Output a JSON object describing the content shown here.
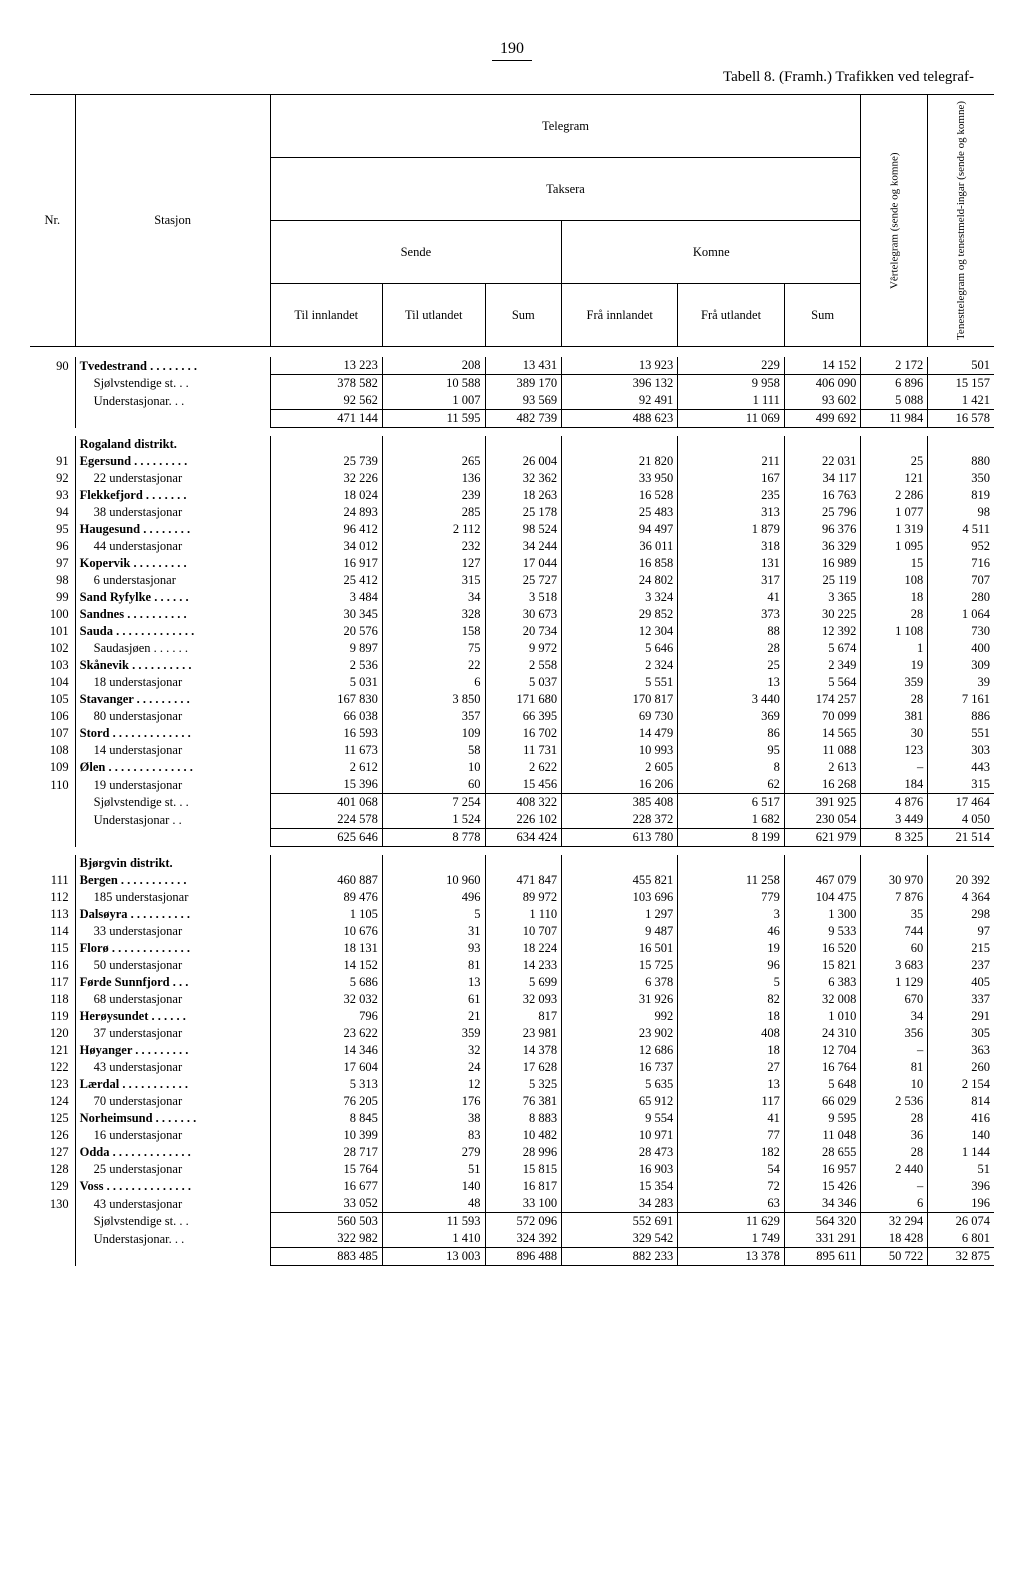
{
  "page_number": "190",
  "title": "Tabell 8. (Framh.) Trafikken ved telegraf-",
  "headers": {
    "telegram": "Telegram",
    "taksera": "Taksera",
    "sende": "Sende",
    "komne": "Komne",
    "nr": "Nr.",
    "stasjon": "Stasjon",
    "til_innlandet": "Til innlandet",
    "til_utlandet": "Til utlandet",
    "sum": "Sum",
    "fra_innlandet": "Frå innlandet",
    "fra_utlandet": "Frå utlandet",
    "vertelegram": "Vêrtelegram (sende og komne)",
    "tenesttelegram": "Tenesttelegram og tenestmeld-ingar (sende og komne)"
  },
  "districts": [
    {
      "pre_rows": [
        {
          "nr": "90",
          "st": "Tvedestrand . . . . . . . .",
          "b": true,
          "c": [
            "13 223",
            "208",
            "13 431",
            "13 923",
            "229",
            "14 152",
            "2 172",
            "501"
          ]
        },
        {
          "nr": "",
          "st": "Sjølvstendige st. . .",
          "c": [
            "378 582",
            "10 588",
            "389 170",
            "396 132",
            "9 958",
            "406 090",
            "6 896",
            "15 157"
          ],
          "topline": true
        },
        {
          "nr": "",
          "st": "Understasjonar. . .",
          "c": [
            "92 562",
            "1 007",
            "93 569",
            "92 491",
            "1 111",
            "93 602",
            "5 088",
            "1 421"
          ]
        },
        {
          "nr": "",
          "st": "",
          "c": [
            "471 144",
            "11 595",
            "482 739",
            "488 623",
            "11 069",
            "499 692",
            "11 984",
            "16 578"
          ],
          "sumline": true
        }
      ],
      "name": "Rogaland distrikt.",
      "rows": [
        {
          "nr": "91",
          "st": "Egersund  . . . . . . . . .",
          "b": true,
          "c": [
            "25 739",
            "265",
            "26 004",
            "21 820",
            "211",
            "22 031",
            "25",
            "880"
          ]
        },
        {
          "nr": "92",
          "st": "22 understasjonar",
          "c": [
            "32 226",
            "136",
            "32 362",
            "33 950",
            "167",
            "34 117",
            "121",
            "350"
          ]
        },
        {
          "nr": "93",
          "st": "Flekkefjord  . . . . . . .",
          "b": true,
          "c": [
            "18 024",
            "239",
            "18 263",
            "16 528",
            "235",
            "16 763",
            "2 286",
            "819"
          ]
        },
        {
          "nr": "94",
          "st": "38 understasjonar",
          "c": [
            "24 893",
            "285",
            "25 178",
            "25 483",
            "313",
            "25 796",
            "1 077",
            "98"
          ]
        },
        {
          "nr": "95",
          "st": "Haugesund . . . . . . . .",
          "b": true,
          "c": [
            "96 412",
            "2 112",
            "98 524",
            "94 497",
            "1 879",
            "96 376",
            "1 319",
            "4 511"
          ]
        },
        {
          "nr": "96",
          "st": "44 understasjonar",
          "c": [
            "34 012",
            "232",
            "34 244",
            "36 011",
            "318",
            "36 329",
            "1 095",
            "952"
          ]
        },
        {
          "nr": "97",
          "st": "Kopervik  . . . . . . . . .",
          "b": true,
          "c": [
            "16 917",
            "127",
            "17 044",
            "16 858",
            "131",
            "16 989",
            "15",
            "716"
          ]
        },
        {
          "nr": "98",
          "st": "6 understasjonar",
          "c": [
            "25 412",
            "315",
            "25 727",
            "24 802",
            "317",
            "25 119",
            "108",
            "707"
          ]
        },
        {
          "nr": "99",
          "st": "Sand Ryfylke . . . . . .",
          "b": true,
          "c": [
            "3 484",
            "34",
            "3 518",
            "3 324",
            "41",
            "3 365",
            "18",
            "280"
          ]
        },
        {
          "nr": "100",
          "st": "Sandnes  . . . . . . . . . .",
          "b": true,
          "c": [
            "30 345",
            "328",
            "30 673",
            "29 852",
            "373",
            "30 225",
            "28",
            "1 064"
          ]
        },
        {
          "nr": "101",
          "st": "Sauda . . . . . . . . . . . . .",
          "b": true,
          "c": [
            "20 576",
            "158",
            "20 734",
            "12 304",
            "88",
            "12 392",
            "1 108",
            "730"
          ]
        },
        {
          "nr": "102",
          "st": "Saudasjøen . . . . . .",
          "c": [
            "9 897",
            "75",
            "9 972",
            "5 646",
            "28",
            "5 674",
            "1",
            "400"
          ]
        },
        {
          "nr": "103",
          "st": "Skånevik . . . . . . . . . .",
          "b": true,
          "c": [
            "2 536",
            "22",
            "2 558",
            "2 324",
            "25",
            "2 349",
            "19",
            "309"
          ]
        },
        {
          "nr": "104",
          "st": "18 understasjonar",
          "c": [
            "5 031",
            "6",
            "5 037",
            "5 551",
            "13",
            "5 564",
            "359",
            "39"
          ]
        },
        {
          "nr": "105",
          "st": "Stavanger . . . . . . . . .",
          "b": true,
          "c": [
            "167 830",
            "3 850",
            "171 680",
            "170 817",
            "3 440",
            "174 257",
            "28",
            "7 161"
          ]
        },
        {
          "nr": "106",
          "st": "80 understasjonar",
          "c": [
            "66 038",
            "357",
            "66 395",
            "69 730",
            "369",
            "70 099",
            "381",
            "886"
          ]
        },
        {
          "nr": "107",
          "st": "Stord . . . . . . . . . . . . .",
          "b": true,
          "c": [
            "16 593",
            "109",
            "16 702",
            "14 479",
            "86",
            "14 565",
            "30",
            "551"
          ]
        },
        {
          "nr": "108",
          "st": "14 understasjonar",
          "c": [
            "11 673",
            "58",
            "11 731",
            "10 993",
            "95",
            "11 088",
            "123",
            "303"
          ]
        },
        {
          "nr": "109",
          "st": "Ølen . . . . . . . . . . . . . .",
          "b": true,
          "c": [
            "2 612",
            "10",
            "2 622",
            "2 605",
            "8",
            "2 613",
            "–",
            "443"
          ]
        },
        {
          "nr": "110",
          "st": "19 understasjonar",
          "c": [
            "15 396",
            "60",
            "15 456",
            "16 206",
            "62",
            "16 268",
            "184",
            "315"
          ]
        },
        {
          "nr": "",
          "st": "Sjølvstendige st. . .",
          "c": [
            "401 068",
            "7 254",
            "408 322",
            "385 408",
            "6 517",
            "391 925",
            "4 876",
            "17 464"
          ],
          "topline": true
        },
        {
          "nr": "",
          "st": "Understasjonar . .",
          "c": [
            "224 578",
            "1 524",
            "226 102",
            "228 372",
            "1 682",
            "230 054",
            "3 449",
            "4 050"
          ]
        },
        {
          "nr": "",
          "st": "",
          "c": [
            "625 646",
            "8 778",
            "634 424",
            "613 780",
            "8 199",
            "621 979",
            "8 325",
            "21 514"
          ],
          "sumline": true
        }
      ]
    },
    {
      "name": "Bjørgvin distrikt.",
      "rows": [
        {
          "nr": "111",
          "st": "Bergen  . . . . . . . . . . .",
          "b": true,
          "c": [
            "460 887",
            "10 960",
            "471 847",
            "455 821",
            "11 258",
            "467 079",
            "30 970",
            "20 392"
          ]
        },
        {
          "nr": "112",
          "st": "185 understasjonar",
          "c": [
            "89 476",
            "496",
            "89 972",
            "103 696",
            "779",
            "104 475",
            "7 876",
            "4 364"
          ]
        },
        {
          "nr": "113",
          "st": "Dalsøyra . . . . . . . . . .",
          "b": true,
          "c": [
            "1 105",
            "5",
            "1 110",
            "1 297",
            "3",
            "1 300",
            "35",
            "298"
          ]
        },
        {
          "nr": "114",
          "st": "33 understasjonar",
          "c": [
            "10 676",
            "31",
            "10 707",
            "9 487",
            "46",
            "9 533",
            "744",
            "97"
          ]
        },
        {
          "nr": "115",
          "st": "Florø . . . . . . . . . . . . .",
          "b": true,
          "c": [
            "18 131",
            "93",
            "18 224",
            "16 501",
            "19",
            "16 520",
            "60",
            "215"
          ]
        },
        {
          "nr": "116",
          "st": "50 understasjonar",
          "c": [
            "14 152",
            "81",
            "14 233",
            "15 725",
            "96",
            "15 821",
            "3 683",
            "237"
          ]
        },
        {
          "nr": "117",
          "st": "Førde Sunnfjord  . . .",
          "b": true,
          "c": [
            "5 686",
            "13",
            "5 699",
            "6 378",
            "5",
            "6 383",
            "1 129",
            "405"
          ]
        },
        {
          "nr": "118",
          "st": "68 understasjonar",
          "c": [
            "32 032",
            "61",
            "32 093",
            "31 926",
            "82",
            "32 008",
            "670",
            "337"
          ]
        },
        {
          "nr": "119",
          "st": "Herøysundet  . . . . . .",
          "b": true,
          "c": [
            "796",
            "21",
            "817",
            "992",
            "18",
            "1 010",
            "34",
            "291"
          ]
        },
        {
          "nr": "120",
          "st": "37 understasjonar",
          "c": [
            "23 622",
            "359",
            "23 981",
            "23 902",
            "408",
            "24 310",
            "356",
            "305"
          ]
        },
        {
          "nr": "121",
          "st": "Høyanger . . . . . . . . .",
          "b": true,
          "c": [
            "14 346",
            "32",
            "14 378",
            "12 686",
            "18",
            "12 704",
            "–",
            "363"
          ]
        },
        {
          "nr": "122",
          "st": "43 understasjonar",
          "c": [
            "17 604",
            "24",
            "17 628",
            "16 737",
            "27",
            "16 764",
            "81",
            "260"
          ]
        },
        {
          "nr": "123",
          "st": "Lærdal  . . . . . . . . . . .",
          "b": true,
          "c": [
            "5 313",
            "12",
            "5 325",
            "5 635",
            "13",
            "5 648",
            "10",
            "2 154"
          ]
        },
        {
          "nr": "124",
          "st": "70 understasjonar",
          "c": [
            "76 205",
            "176",
            "76 381",
            "65 912",
            "117",
            "66 029",
            "2 536",
            "814"
          ]
        },
        {
          "nr": "125",
          "st": "Norheimsund . . . . . . .",
          "b": true,
          "c": [
            "8 845",
            "38",
            "8 883",
            "9 554",
            "41",
            "9 595",
            "28",
            "416"
          ]
        },
        {
          "nr": "126",
          "st": "16 understasjonar",
          "c": [
            "10 399",
            "83",
            "10 482",
            "10 971",
            "77",
            "11 048",
            "36",
            "140"
          ]
        },
        {
          "nr": "127",
          "st": "Odda . . . . . . . . . . . . .",
          "b": true,
          "c": [
            "28 717",
            "279",
            "28 996",
            "28 473",
            "182",
            "28 655",
            "28",
            "1 144"
          ]
        },
        {
          "nr": "128",
          "st": "25 understasjonar",
          "c": [
            "15 764",
            "51",
            "15 815",
            "16 903",
            "54",
            "16 957",
            "2 440",
            "51"
          ]
        },
        {
          "nr": "129",
          "st": "Voss . . . . . . . . . . . . . .",
          "b": true,
          "c": [
            "16 677",
            "140",
            "16 817",
            "15 354",
            "72",
            "15 426",
            "–",
            "396"
          ]
        },
        {
          "nr": "130",
          "st": "43 understasjonar",
          "c": [
            "33 052",
            "48",
            "33 100",
            "34 283",
            "63",
            "34 346",
            "6",
            "196"
          ]
        },
        {
          "nr": "",
          "st": "Sjølvstendige st. . .",
          "c": [
            "560 503",
            "11 593",
            "572 096",
            "552 691",
            "11 629",
            "564 320",
            "32 294",
            "26 074"
          ],
          "topline": true
        },
        {
          "nr": "",
          "st": "Understasjonar. . .",
          "c": [
            "322 982",
            "1 410",
            "324 392",
            "329 542",
            "1 749",
            "331 291",
            "18 428",
            "6 801"
          ]
        },
        {
          "nr": "",
          "st": "",
          "c": [
            "883 485",
            "13 003",
            "896 488",
            "882 233",
            "13 378",
            "895 611",
            "50 722",
            "32 875"
          ],
          "sumline": true
        }
      ]
    }
  ]
}
